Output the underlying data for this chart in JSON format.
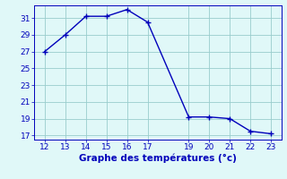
{
  "x": [
    12,
    13,
    14,
    15,
    16,
    17,
    19,
    20,
    21,
    22,
    23
  ],
  "y": [
    27.0,
    29.0,
    31.2,
    31.2,
    32.0,
    30.5,
    19.2,
    19.2,
    19.0,
    17.5,
    17.2
  ],
  "line_color": "#0000bb",
  "marker": "+",
  "marker_size": 4,
  "marker_linewidth": 1.0,
  "bg_color": "#e0f8f8",
  "grid_color": "#99cccc",
  "xlabel": "Graphe des températures (°c)",
  "xlabel_color": "#0000bb",
  "xlabel_fontsize": 7.5,
  "tick_color": "#0000bb",
  "tick_fontsize": 6.5,
  "linewidth": 1.0,
  "xlim": [
    11.5,
    23.5
  ],
  "ylim": [
    16.5,
    32.5
  ],
  "yticks": [
    17,
    19,
    21,
    23,
    25,
    27,
    29,
    31
  ],
  "xticks": [
    12,
    13,
    14,
    15,
    16,
    17,
    19,
    20,
    21,
    22,
    23
  ]
}
